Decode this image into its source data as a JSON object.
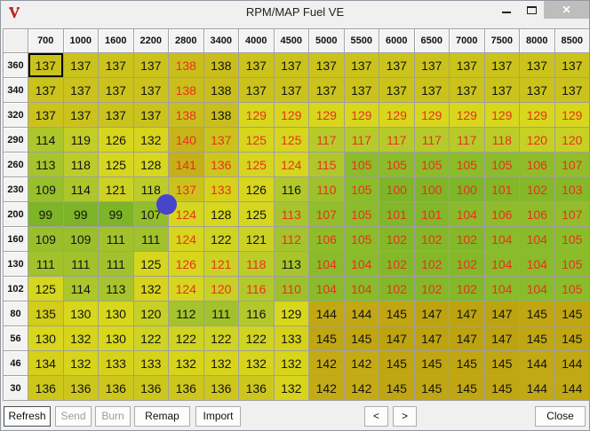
{
  "window": {
    "title": "RPM/MAP Fuel VE",
    "logo_letter": "V",
    "close_glyph": "✕"
  },
  "colors": {
    "red_text": "#e8311c",
    "black_text": "#131313",
    "cursor_dot": "#4743cb",
    "close_button_bg": "#bdbdbd"
  },
  "heatmap_stops": [
    [
      99,
      "#7db428"
    ],
    [
      105,
      "#8bbc2a"
    ],
    [
      110,
      "#9dc12c"
    ],
    [
      113,
      "#a8c42c"
    ],
    [
      117,
      "#b7ca2b"
    ],
    [
      121,
      "#ccd223"
    ],
    [
      124,
      "#d6d61e"
    ],
    [
      130,
      "#d8d71c"
    ],
    [
      134,
      "#d5d01a"
    ],
    [
      137,
      "#cbc31b"
    ],
    [
      139,
      "#c9b81e"
    ],
    [
      142,
      "#c4ab16"
    ],
    [
      147,
      "#bda310"
    ]
  ],
  "table": {
    "col_headers": [
      "700",
      "1000",
      "1600",
      "2200",
      "2800",
      "3400",
      "4000",
      "4500",
      "5000",
      "5500",
      "6000",
      "6500",
      "7000",
      "7500",
      "8000",
      "8500"
    ],
    "row_headers": [
      "360",
      "340",
      "320",
      "290",
      "260",
      "230",
      "200",
      "160",
      "130",
      "102",
      "80",
      "56",
      "46",
      "30"
    ],
    "rows": [
      [
        137,
        137,
        137,
        137,
        138,
        138,
        137,
        137,
        137,
        137,
        137,
        137,
        137,
        137,
        137,
        137
      ],
      [
        137,
        137,
        137,
        137,
        138,
        138,
        137,
        137,
        137,
        137,
        137,
        137,
        137,
        137,
        137,
        137
      ],
      [
        137,
        137,
        137,
        137,
        138,
        138,
        129,
        129,
        129,
        129,
        129,
        129,
        129,
        129,
        129,
        129
      ],
      [
        114,
        119,
        126,
        132,
        140,
        137,
        125,
        125,
        117,
        117,
        117,
        117,
        117,
        118,
        120,
        120
      ],
      [
        113,
        118,
        125,
        128,
        141,
        136,
        125,
        124,
        115,
        105,
        105,
        105,
        105,
        105,
        106,
        107
      ],
      [
        109,
        114,
        121,
        118,
        137,
        133,
        126,
        116,
        110,
        105,
        100,
        100,
        100,
        101,
        102,
        103
      ],
      [
        99,
        99,
        99,
        107,
        124,
        128,
        125,
        113,
        107,
        105,
        101,
        101,
        104,
        106,
        106,
        107
      ],
      [
        109,
        109,
        111,
        111,
        124,
        122,
        121,
        112,
        106,
        105,
        102,
        102,
        102,
        104,
        104,
        105
      ],
      [
        111,
        111,
        111,
        125,
        126,
        121,
        118,
        113,
        104,
        104,
        102,
        102,
        102,
        104,
        104,
        105
      ],
      [
        125,
        114,
        113,
        132,
        124,
        120,
        116,
        110,
        104,
        104,
        102,
        102,
        102,
        104,
        104,
        105
      ],
      [
        135,
        130,
        130,
        120,
        112,
        111,
        116,
        129,
        144,
        144,
        145,
        147,
        147,
        147,
        145,
        145
      ],
      [
        130,
        132,
        130,
        122,
        122,
        122,
        122,
        133,
        145,
        145,
        147,
        147,
        147,
        147,
        145,
        145
      ],
      [
        134,
        132,
        133,
        133,
        132,
        132,
        132,
        132,
        142,
        142,
        145,
        145,
        145,
        145,
        144,
        144
      ],
      [
        136,
        136,
        136,
        136,
        136,
        136,
        136,
        132,
        142,
        142,
        145,
        145,
        145,
        145,
        144,
        144
      ]
    ],
    "red": [
      [
        0,
        0,
        0,
        0,
        1,
        0,
        0,
        0,
        0,
        0,
        0,
        0,
        0,
        0,
        0,
        0
      ],
      [
        0,
        0,
        0,
        0,
        1,
        0,
        0,
        0,
        0,
        0,
        0,
        0,
        0,
        0,
        0,
        0
      ],
      [
        0,
        0,
        0,
        0,
        1,
        0,
        1,
        1,
        1,
        1,
        1,
        1,
        1,
        1,
        1,
        1
      ],
      [
        0,
        0,
        0,
        0,
        1,
        1,
        1,
        1,
        1,
        1,
        1,
        1,
        1,
        1,
        1,
        1
      ],
      [
        0,
        0,
        0,
        0,
        1,
        1,
        1,
        1,
        1,
        1,
        1,
        1,
        1,
        1,
        1,
        1
      ],
      [
        0,
        0,
        0,
        0,
        1,
        1,
        0,
        0,
        1,
        1,
        1,
        1,
        1,
        1,
        1,
        1
      ],
      [
        0,
        0,
        0,
        0,
        1,
        0,
        0,
        1,
        1,
        1,
        1,
        1,
        1,
        1,
        1,
        1
      ],
      [
        0,
        0,
        0,
        0,
        1,
        0,
        0,
        1,
        1,
        1,
        1,
        1,
        1,
        1,
        1,
        1
      ],
      [
        0,
        0,
        0,
        0,
        1,
        1,
        1,
        0,
        1,
        1,
        1,
        1,
        1,
        1,
        1,
        1
      ],
      [
        0,
        0,
        0,
        0,
        1,
        1,
        1,
        1,
        1,
        1,
        1,
        1,
        1,
        1,
        1,
        1
      ],
      [
        0,
        0,
        0,
        0,
        0,
        0,
        0,
        0,
        0,
        0,
        0,
        0,
        0,
        0,
        0,
        0
      ],
      [
        0,
        0,
        0,
        0,
        0,
        0,
        0,
        0,
        0,
        0,
        0,
        0,
        0,
        0,
        0,
        0
      ],
      [
        0,
        0,
        0,
        0,
        0,
        0,
        0,
        0,
        0,
        0,
        0,
        0,
        0,
        0,
        0,
        0
      ],
      [
        0,
        0,
        0,
        0,
        0,
        0,
        0,
        0,
        0,
        0,
        0,
        0,
        0,
        0,
        0,
        0
      ]
    ],
    "selected": {
      "row": 0,
      "col": 0
    }
  },
  "buttons": {
    "refresh": "Refresh",
    "send": "Send",
    "burn": "Burn",
    "remap": "Remap",
    "import": "Import",
    "prev": "<",
    "next": ">",
    "close": "Close"
  }
}
